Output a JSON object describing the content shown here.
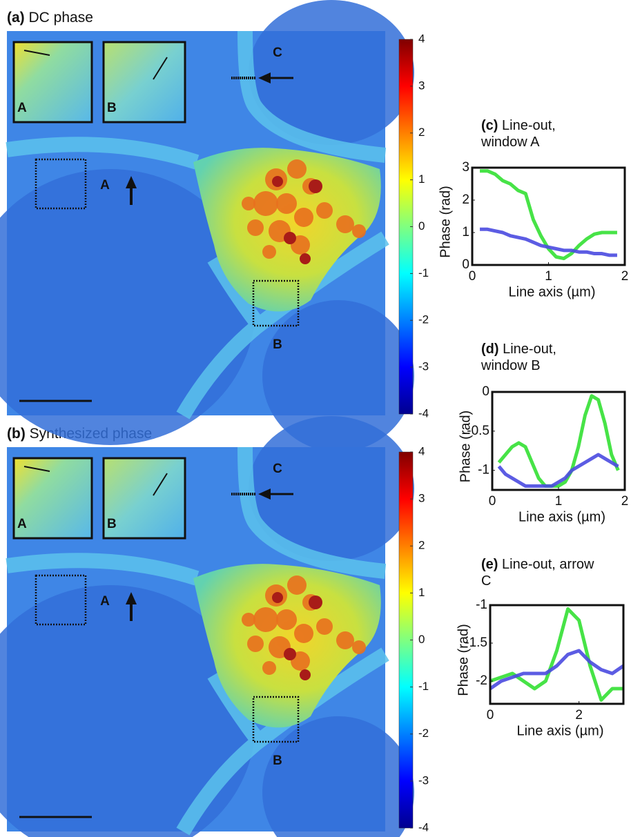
{
  "panels": [
    {
      "label": "(a)",
      "title": "DC phase",
      "colorbar": {
        "ylim": [
          -4,
          4
        ],
        "yticks": [
          -4,
          -3,
          -2,
          -1,
          0,
          1,
          2,
          3,
          4
        ]
      },
      "inset_labels": [
        "A",
        "B"
      ],
      "marker_labels": [
        "A",
        "B",
        "C"
      ]
    },
    {
      "label": "(b)",
      "title": "Synthesized phase",
      "colorbar": {
        "ylim": [
          -4,
          4
        ],
        "yticks": [
          -4,
          -3,
          -2,
          -1,
          0,
          1,
          2,
          3,
          4
        ]
      },
      "inset_labels": [
        "A",
        "B"
      ],
      "marker_labels": [
        "A",
        "B",
        "C"
      ]
    }
  ],
  "chart_data": [
    {
      "type": "line",
      "panel_label": "(c)",
      "title": "Line-out, window A",
      "xlabel": "Line axis (µm)",
      "ylabel": "Phase (rad)",
      "x": [
        0.1,
        0.2,
        0.3,
        0.4,
        0.5,
        0.6,
        0.7,
        0.8,
        0.9,
        1.0,
        1.1,
        1.2,
        1.3,
        1.4,
        1.5,
        1.6,
        1.7,
        1.8,
        1.9
      ],
      "xlim": [
        0,
        2
      ],
      "xticks": [
        0,
        1,
        2
      ],
      "ylim": [
        0,
        3
      ],
      "yticks": [
        0,
        1,
        2,
        3
      ],
      "series": [
        {
          "color": "#33e033",
          "values": [
            2.9,
            2.9,
            2.8,
            2.6,
            2.5,
            2.3,
            2.2,
            1.4,
            0.9,
            0.5,
            0.25,
            0.2,
            0.35,
            0.6,
            0.8,
            0.95,
            1.0,
            1.0,
            1.0
          ]
        },
        {
          "color": "#4a4ae0",
          "values": [
            1.1,
            1.1,
            1.05,
            1.0,
            0.9,
            0.85,
            0.8,
            0.7,
            0.6,
            0.55,
            0.5,
            0.45,
            0.45,
            0.4,
            0.4,
            0.35,
            0.35,
            0.3,
            0.3
          ]
        }
      ]
    },
    {
      "type": "line",
      "panel_label": "(d)",
      "title": "Line-out, window B",
      "xlabel": "Line axis (µm)",
      "ylabel": "Phase (rad)",
      "x": [
        0.1,
        0.2,
        0.3,
        0.4,
        0.5,
        0.6,
        0.7,
        0.8,
        0.9,
        1.0,
        1.1,
        1.2,
        1.3,
        1.4,
        1.5,
        1.6,
        1.7,
        1.8,
        1.9
      ],
      "xlim": [
        0,
        2
      ],
      "xticks": [
        0,
        1,
        2
      ],
      "ylim": [
        -1.25,
        0
      ],
      "yticks": [
        -1,
        -0.5,
        0
      ],
      "series": [
        {
          "color": "#33e033",
          "values": [
            -0.9,
            -0.8,
            -0.7,
            -0.65,
            -0.7,
            -0.9,
            -1.1,
            -1.2,
            -1.2,
            -1.2,
            -1.15,
            -1.0,
            -0.7,
            -0.3,
            -0.05,
            -0.1,
            -0.4,
            -0.8,
            -1.0
          ]
        },
        {
          "color": "#4a4ae0",
          "values": [
            -0.95,
            -1.05,
            -1.1,
            -1.15,
            -1.2,
            -1.2,
            -1.2,
            -1.2,
            -1.2,
            -1.15,
            -1.1,
            -1.0,
            -0.95,
            -0.9,
            -0.85,
            -0.8,
            -0.85,
            -0.9,
            -0.95
          ]
        }
      ]
    },
    {
      "type": "line",
      "panel_label": "(e)",
      "title": "Line-out, arrow C",
      "xlabel": "Line axis (µm)",
      "ylabel": "Phase (rad)",
      "x": [
        0,
        0.25,
        0.5,
        0.75,
        1.0,
        1.25,
        1.5,
        1.75,
        2.0,
        2.25,
        2.5,
        2.75,
        3.0
      ],
      "xlim": [
        0,
        3
      ],
      "xticks": [
        0,
        2
      ],
      "ylim": [
        -2.3,
        -1
      ],
      "yticks": [
        -2,
        -1.5,
        -1
      ],
      "series": [
        {
          "color": "#33e033",
          "values": [
            -2.0,
            -1.95,
            -1.9,
            -2.0,
            -2.1,
            -2.0,
            -1.6,
            -1.05,
            -1.2,
            -1.8,
            -2.25,
            -2.1,
            -2.1
          ]
        },
        {
          "color": "#4a4ae0",
          "values": [
            -2.1,
            -2.0,
            -1.95,
            -1.9,
            -1.9,
            -1.9,
            -1.8,
            -1.65,
            -1.6,
            -1.75,
            -1.85,
            -1.9,
            -1.8
          ]
        }
      ]
    }
  ]
}
